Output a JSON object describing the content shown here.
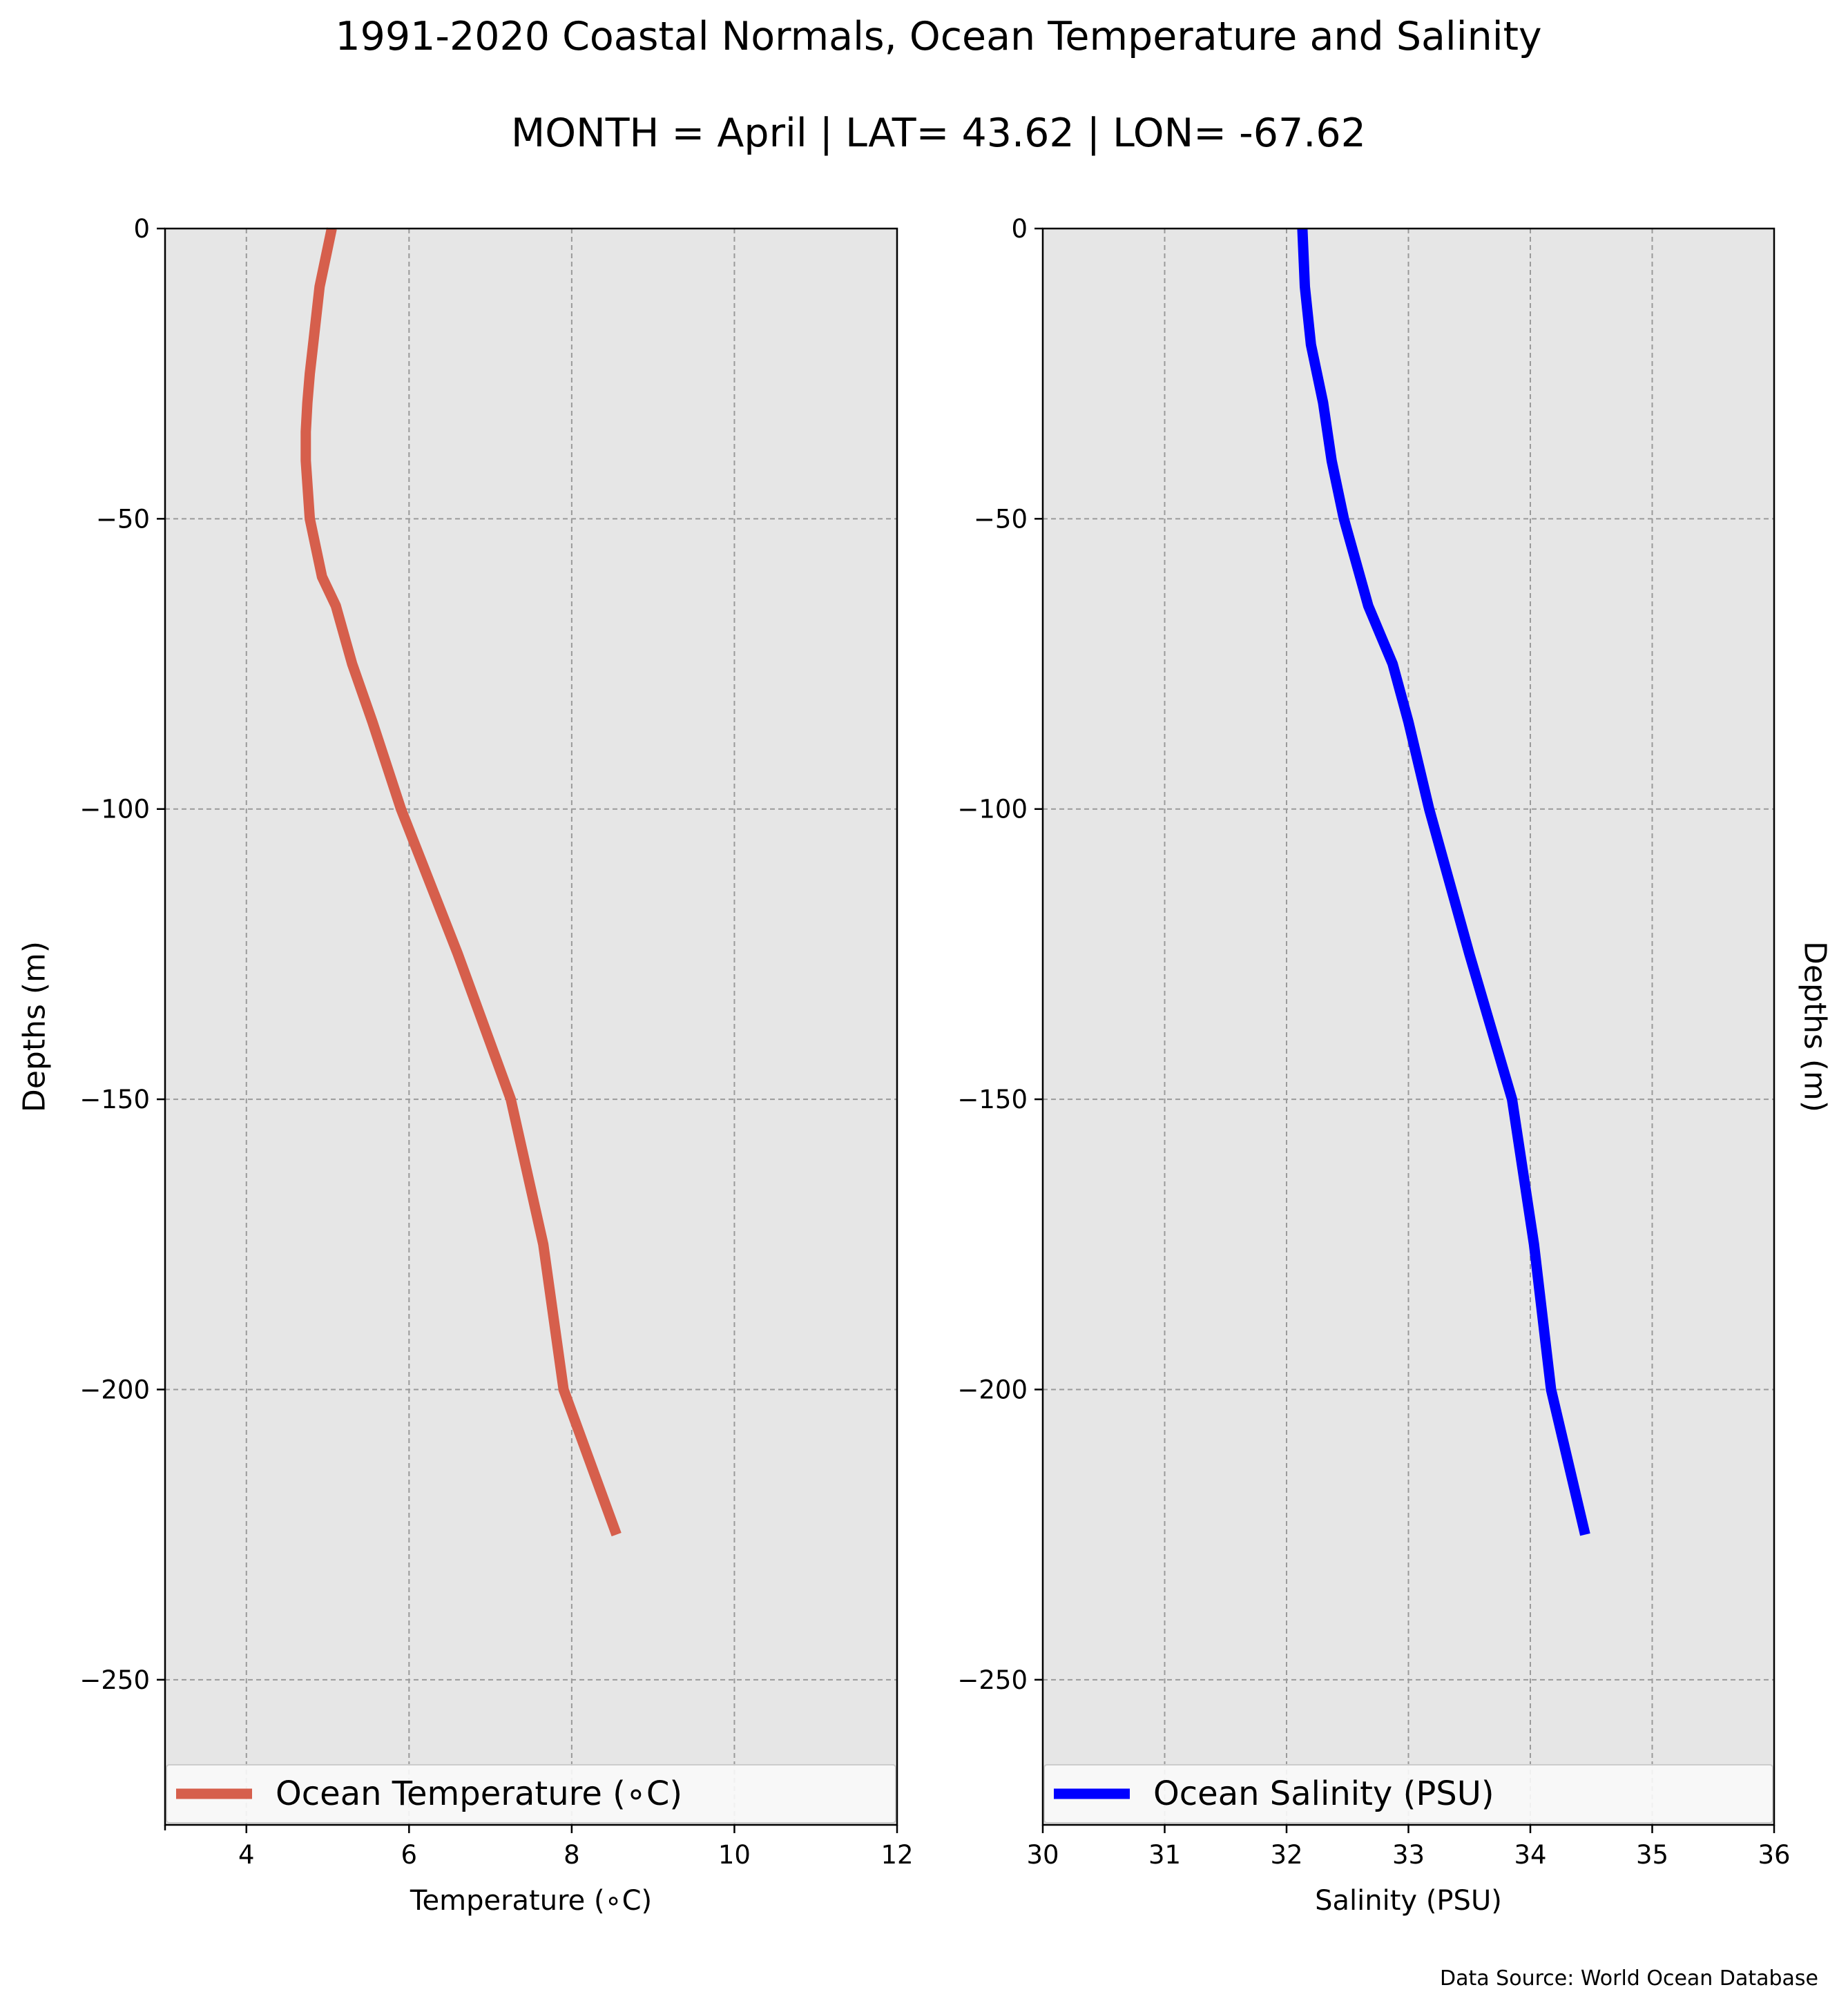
{
  "title": "1991-2020 Coastal Normals, Ocean Temperature and Salinity",
  "subtitle": "MONTH = April | LAT= 43.62 | LON= -67.62",
  "source_note": "Data Source: World Ocean Database",
  "colors": {
    "temperature_line": "#d65f4c",
    "salinity_line": "#0000ff",
    "plot_background": "#e6e6e6",
    "grid": "#9a9a9a"
  },
  "chart_data": [
    {
      "type": "line",
      "xlabel": "Temperature ($^\\circ$C)",
      "xlabel_display": "Temperature (∘C)",
      "ylabel": "Depths (m)",
      "xlim": [
        3,
        12
      ],
      "ylim": [
        -275,
        0
      ],
      "x_ticks": [
        4,
        6,
        8,
        10,
        12
      ],
      "y_ticks": [
        0,
        -50,
        -100,
        -150,
        -200,
        -250
      ],
      "y_tick_labels": [
        "0",
        "−50",
        "−100",
        "−150",
        "−200",
        "−250"
      ],
      "grid": true,
      "legend_position": "bottom",
      "series": [
        {
          "name": "Ocean Temperature (∘C)",
          "color": "#d65f4c",
          "x": [
            5.05,
            4.9,
            4.82,
            4.78,
            4.75,
            4.73,
            4.73,
            4.78,
            4.93,
            5.1,
            5.3,
            5.55,
            5.9,
            6.6,
            7.25,
            7.65,
            7.9,
            8.55
          ],
          "y": [
            0,
            -10,
            -20,
            -25,
            -30,
            -35,
            -40,
            -50,
            -60,
            -65,
            -75,
            -85,
            -100,
            -125,
            -150,
            -175,
            -200,
            -225
          ]
        }
      ]
    },
    {
      "type": "line",
      "xlabel": "Salinity (PSU)",
      "ylabel": "Depths (m)",
      "xlim": [
        30,
        36
      ],
      "ylim": [
        -275,
        0
      ],
      "x_ticks": [
        30,
        31,
        32,
        33,
        34,
        35,
        36
      ],
      "y_ticks": [
        0,
        -50,
        -100,
        -150,
        -200,
        -250
      ],
      "y_tick_labels": [
        "0",
        "−50",
        "−100",
        "−150",
        "−200",
        "−250"
      ],
      "grid": true,
      "legend_position": "bottom",
      "series": [
        {
          "name": "Ocean Salinity (PSU)",
          "color": "#0000ff",
          "x": [
            32.13,
            32.15,
            32.2,
            32.25,
            32.3,
            32.37,
            32.47,
            32.67,
            32.77,
            32.87,
            33.0,
            33.17,
            33.5,
            33.85,
            34.03,
            34.17,
            34.45
          ],
          "y": [
            0,
            -10,
            -20,
            -25,
            -30,
            -40,
            -50,
            -65,
            -70,
            -75,
            -85,
            -100,
            -125,
            -150,
            -175,
            -200,
            -225
          ]
        }
      ]
    }
  ]
}
